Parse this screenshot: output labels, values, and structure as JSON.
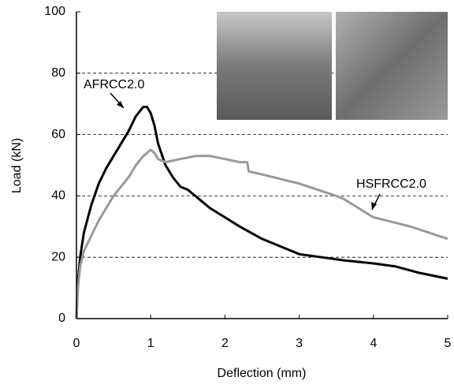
{
  "chart_data": {
    "type": "line",
    "xlabel": "Deflection (mm)",
    "ylabel": "Load (kN)",
    "xlim": [
      0,
      5
    ],
    "ylim": [
      0,
      100
    ],
    "xticks": [
      0,
      1,
      2,
      3,
      4,
      5
    ],
    "yticks": [
      0,
      20,
      40,
      60,
      80,
      100
    ],
    "grid": true,
    "annotations": [
      "AFRCC2.0",
      "HSFRCC2.0"
    ],
    "series": [
      {
        "name": "AFRCC2.0",
        "color": "#000000",
        "x": [
          0,
          0.02,
          0.05,
          0.1,
          0.2,
          0.3,
          0.4,
          0.5,
          0.6,
          0.7,
          0.8,
          0.9,
          0.95,
          1.0,
          1.05,
          1.1,
          1.2,
          1.3,
          1.4,
          1.5,
          1.6,
          1.7,
          1.8,
          2.0,
          2.2,
          2.5,
          2.8,
          3.0,
          3.3,
          3.6,
          4.0,
          4.3,
          4.6,
          5.0
        ],
        "values": [
          0,
          12,
          20,
          28,
          37,
          44,
          49,
          53,
          57,
          61,
          66,
          69,
          69,
          67,
          63,
          57,
          50,
          46,
          43,
          42,
          40,
          38,
          36,
          33,
          30,
          26,
          23,
          21,
          20,
          19,
          18,
          17,
          15,
          13
        ]
      },
      {
        "name": "HSFRCC2.0",
        "color": "#999999",
        "x": [
          0,
          0.02,
          0.05,
          0.1,
          0.2,
          0.3,
          0.4,
          0.5,
          0.6,
          0.7,
          0.8,
          0.9,
          1.0,
          1.05,
          1.1,
          1.2,
          1.4,
          1.6,
          1.8,
          2.0,
          2.2,
          2.3,
          2.32,
          2.5,
          3.0,
          3.5,
          3.6,
          3.8,
          4.0,
          4.5,
          5.0
        ],
        "values": [
          0,
          10,
          17,
          22,
          27,
          32,
          36,
          40,
          43,
          46,
          50,
          53,
          55,
          54,
          52,
          51,
          52,
          53,
          53,
          52,
          51,
          51,
          48,
          47,
          44,
          40,
          39,
          36,
          33,
          30,
          26
        ]
      }
    ]
  }
}
